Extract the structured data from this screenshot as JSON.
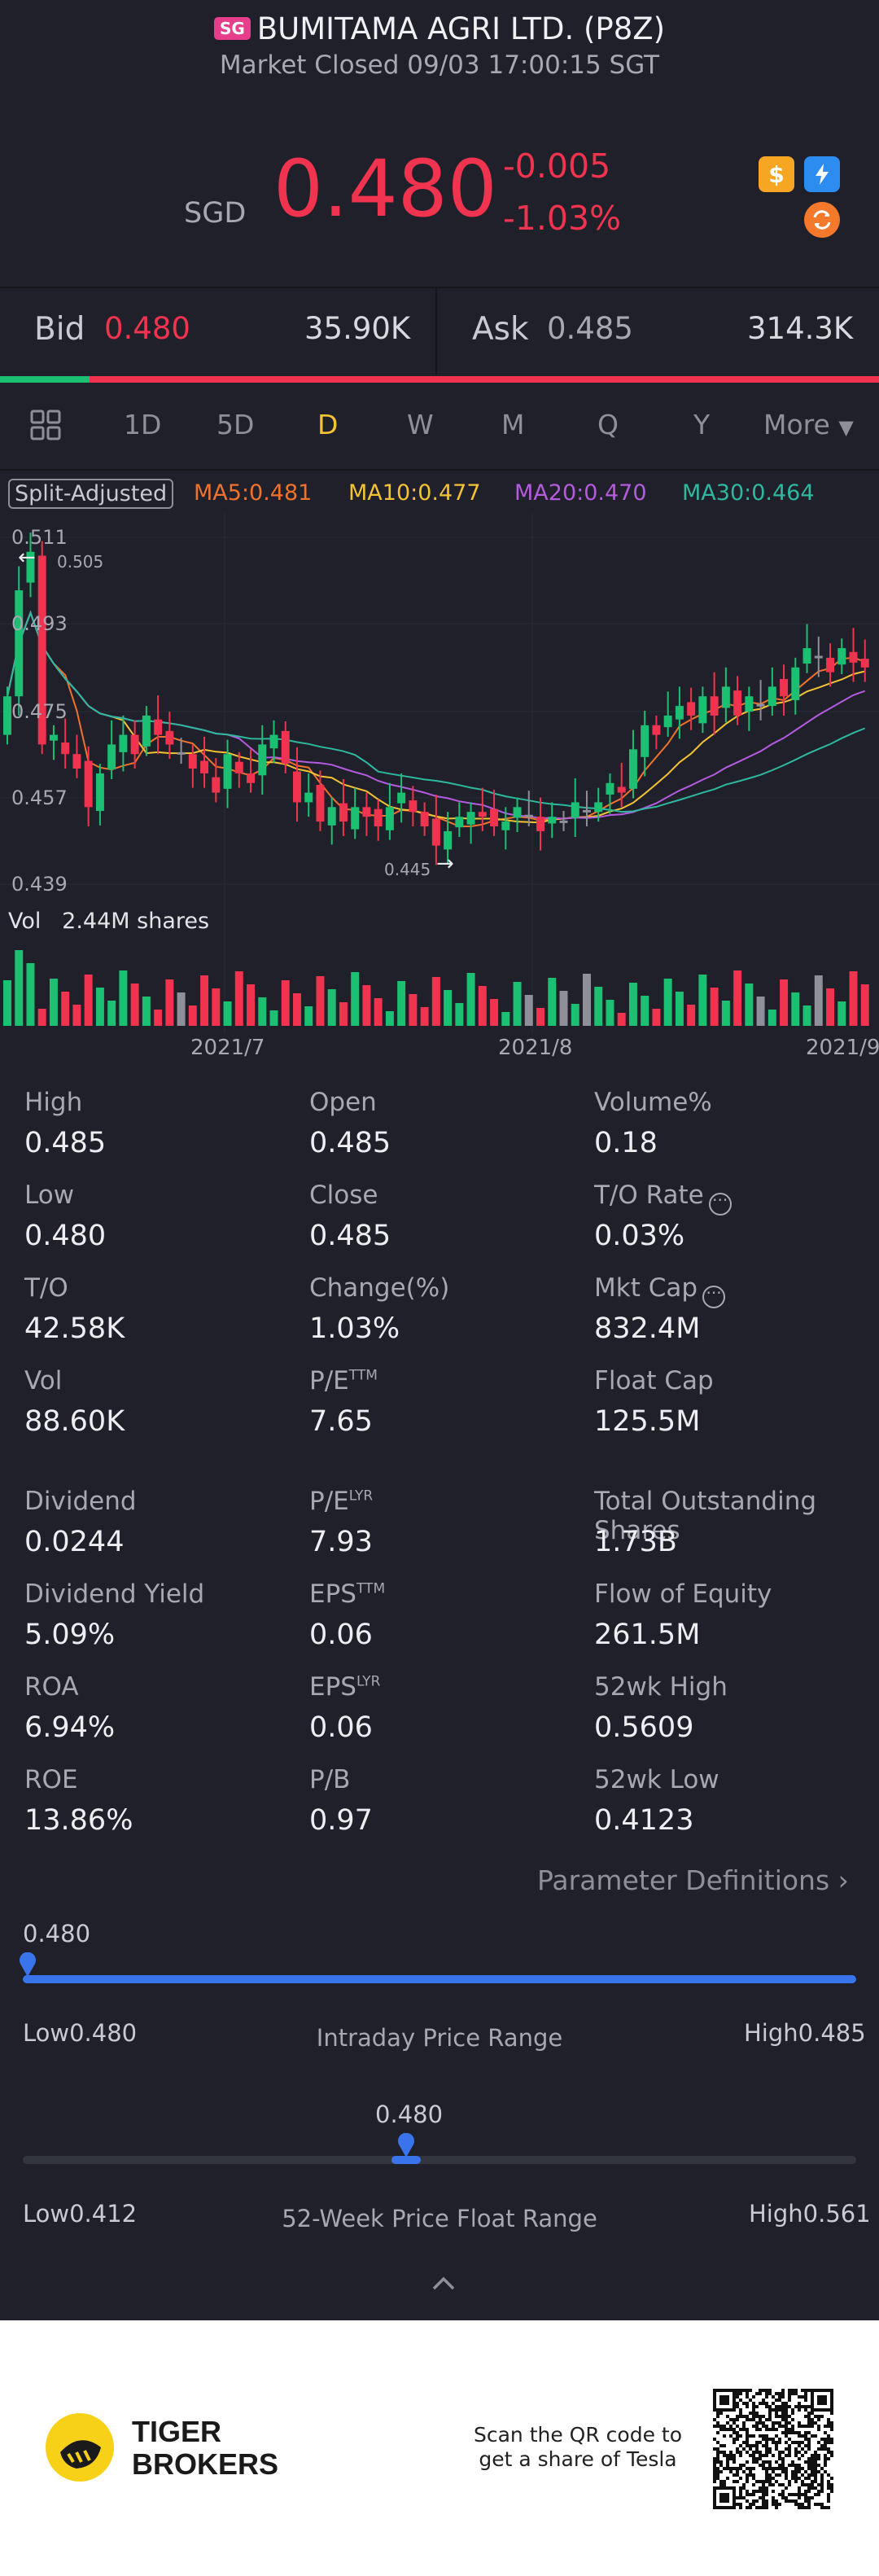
{
  "header": {
    "market_tag": "SG",
    "title": "BUMITAMA AGRI LTD. (P8Z)",
    "status": "Market Closed 09/03 17:00:15 SGT"
  },
  "quote": {
    "currency": "SGD",
    "price": "0.480",
    "change": "-0.005",
    "change_pct": "-1.03%"
  },
  "bidask": {
    "bid_label": "Bid",
    "bid_price": "0.480",
    "bid_size": "35.90K",
    "ask_label": "Ask",
    "ask_price": "0.485",
    "ask_size": "314.3K"
  },
  "tabs": [
    {
      "label": "1D"
    },
    {
      "label": "5D"
    },
    {
      "label": "D"
    },
    {
      "label": "W"
    },
    {
      "label": "M"
    },
    {
      "label": "Q"
    },
    {
      "label": "Y"
    },
    {
      "label": "More"
    }
  ],
  "active_tab": "D",
  "legend": {
    "split": "Split-Adjusted",
    "ma5": "MA5:0.481",
    "ma10": "MA10:0.477",
    "ma20": "MA20:0.470",
    "ma30": "MA30:0.464"
  },
  "colors": {
    "up": "#1cc072",
    "down": "#f0334e",
    "neutral": "#8e8f99",
    "ma5": "#f0722c",
    "ma10": "#f5c234",
    "ma20": "#b45be0",
    "ma30": "#2fb8a0",
    "accent": "#3a74ea"
  },
  "chart": {
    "y_ticks": [
      "0.511",
      "0.493",
      "0.475",
      "0.457",
      "0.439"
    ],
    "max_label": "0.505",
    "min_label": "0.445",
    "vol_label": "Vol",
    "vol_value": "2.44M shares",
    "x_ticks": [
      "2021/7",
      "2021/8",
      "2021/9"
    ]
  },
  "stats": [
    {
      "label": "High",
      "value": "0.485"
    },
    {
      "label": "Open",
      "value": "0.485"
    },
    {
      "label": "Volume%",
      "value": "0.18"
    },
    {
      "label": "Low",
      "value": "0.480"
    },
    {
      "label": "Close",
      "value": "0.485"
    },
    {
      "label": "T/O Rate",
      "value": "0.03%"
    },
    {
      "label": "T/O",
      "value": "42.58K"
    },
    {
      "label": "Change(%)",
      "value": "1.03%"
    },
    {
      "label": "Mkt Cap",
      "value": "832.4M"
    },
    {
      "label": "Vol",
      "value": "88.60K"
    },
    {
      "label": "P/E",
      "sup": "TTM",
      "value": "7.65"
    },
    {
      "label": "Float Cap",
      "value": "125.5M"
    },
    {
      "label": "Dividend",
      "value": "0.0244"
    },
    {
      "label": "P/E",
      "sup": "LYR",
      "value": "7.93"
    },
    {
      "label": "Total Outstanding Shares",
      "value": "1.73B"
    },
    {
      "label": "Dividend Yield",
      "value": "5.09%"
    },
    {
      "label": "EPS",
      "sup": "TTM",
      "value": "0.06"
    },
    {
      "label": "Flow of Equity",
      "value": "261.5M"
    },
    {
      "label": "ROA",
      "value": "6.94%"
    },
    {
      "label": "EPS",
      "sup": "LYR",
      "value": "0.06"
    },
    {
      "label": "52wk High",
      "value": "0.5609"
    },
    {
      "label": "ROE",
      "value": "13.86%"
    },
    {
      "label": "P/B",
      "value": "0.97"
    },
    {
      "label": "52wk Low",
      "value": "0.4123"
    }
  ],
  "param_definitions": "Parameter Definitions",
  "intraday_range": {
    "label": "Intraday Price Range",
    "current": "0.480",
    "low_label": "Low",
    "low": "0.480",
    "high_label": "High",
    "high": "0.485",
    "position": 0.0
  },
  "week52_range": {
    "label": "52-Week Price Float Range",
    "current": "0.480",
    "low_label": "Low",
    "low": "0.412",
    "high_label": "High",
    "high": "0.561",
    "position": 0.46
  },
  "footer": {
    "brand_line1": "TIGER",
    "brand_line2": "BROKERS",
    "qr_line1": "Scan the QR code to",
    "qr_line2": "get a share of Tesla"
  }
}
